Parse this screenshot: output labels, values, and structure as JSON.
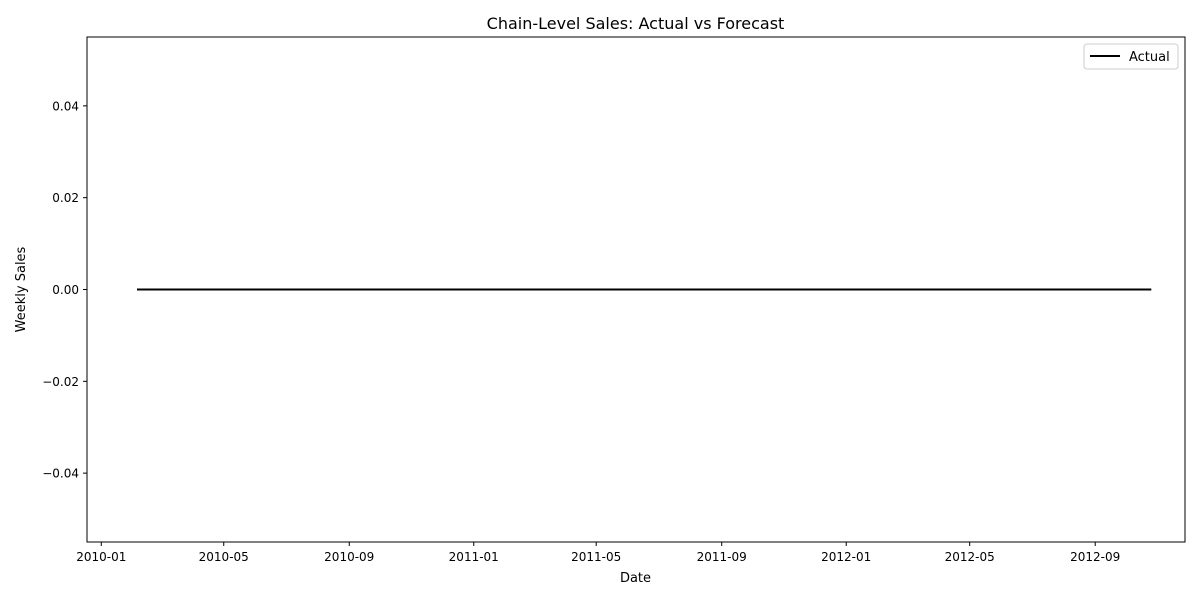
{
  "chart_data": {
    "type": "line",
    "title": "Chain-Level Sales: Actual vs Forecast",
    "xlabel": "Date",
    "ylabel": "Weekly Sales",
    "x_range": [
      "2010-01-01",
      "2012-10-31"
    ],
    "xlim": [
      "2009-12-18",
      "2012-11-28"
    ],
    "ylim": [
      -0.055,
      0.055
    ],
    "x_ticks": [
      "2010-01",
      "2010-05",
      "2010-09",
      "2011-01",
      "2011-05",
      "2011-09",
      "2012-01",
      "2012-05",
      "2012-09"
    ],
    "y_ticks": [
      0.04,
      0.02,
      0.0,
      -0.02,
      -0.04
    ],
    "y_tick_labels": [
      "0.04",
      "0.02",
      "0.00",
      "−0.02",
      "−0.04"
    ],
    "grid": false,
    "legend_position": "top-right",
    "series": [
      {
        "name": "Actual",
        "color": "#000000",
        "x": [
          "2010-02-05",
          "2012-10-26"
        ],
        "y": [
          0.0,
          0.0
        ]
      }
    ]
  }
}
